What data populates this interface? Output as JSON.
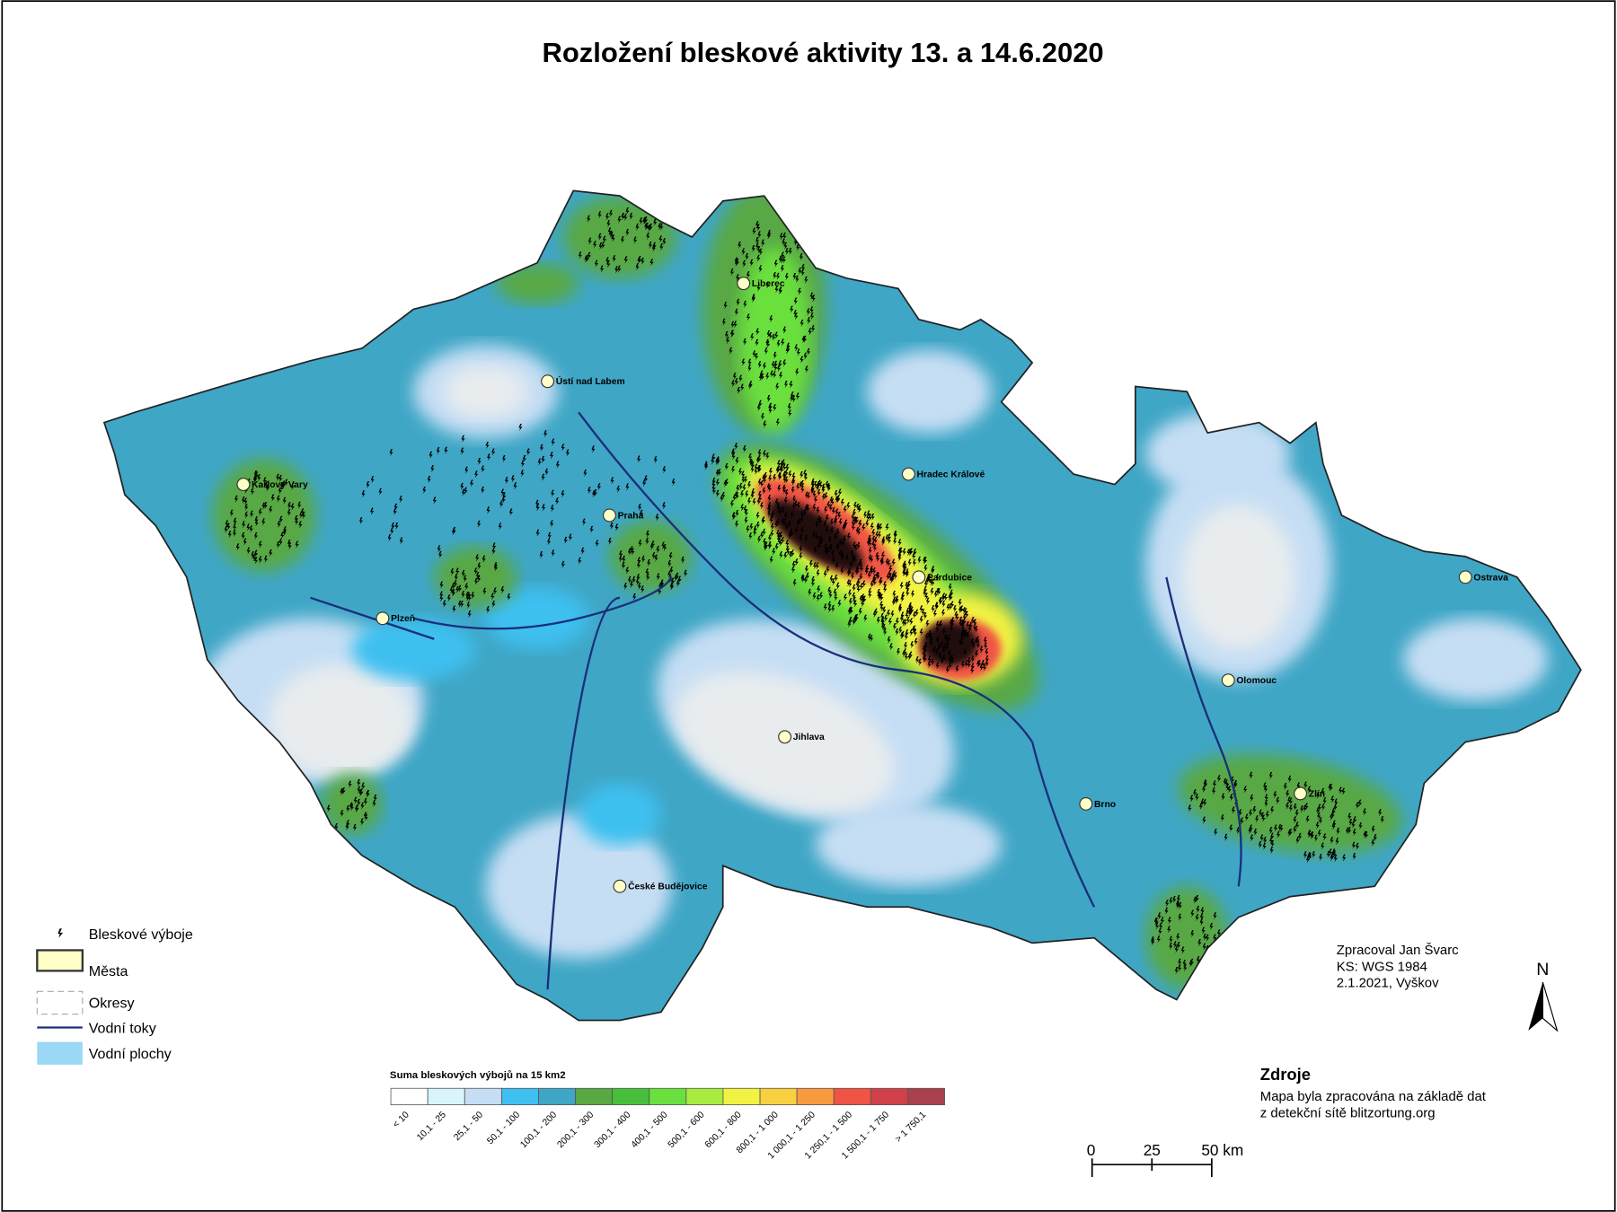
{
  "title": "Rozložení bleskové aktivity 13. a 14.6.2020",
  "legend": {
    "items": [
      {
        "label": "Bleskové výboje"
      },
      {
        "label": "Města",
        "color": "#ffffc8"
      },
      {
        "label": "Okresy"
      },
      {
        "label": "Vodní toky",
        "color": "#1a2e7a"
      },
      {
        "label": "Vodní plochy",
        "color": "#9ad8f5"
      }
    ]
  },
  "color_scale": {
    "title": "Suma bleskových výbojů na 15 km2",
    "classes": [
      {
        "label": "< 10",
        "color": "#ffffff"
      },
      {
        "label": "10,1 - 25",
        "color": "#d8f4fc"
      },
      {
        "label": "25,1 - 50",
        "color": "#c6def4"
      },
      {
        "label": "50,1 - 100",
        "color": "#3ec0f0"
      },
      {
        "label": "100,1 - 200",
        "color": "#3fa6c6"
      },
      {
        "label": "200,1 - 300",
        "color": "#58a844"
      },
      {
        "label": "300,1 - 400",
        "color": "#48bf3c"
      },
      {
        "label": "400,1 - 500",
        "color": "#6ae03e"
      },
      {
        "label": "500,1 - 600",
        "color": "#a8ec40"
      },
      {
        "label": "600,1 - 800",
        "color": "#f2f242"
      },
      {
        "label": "800,1 - 1 000",
        "color": "#f8d040"
      },
      {
        "label": "1 000,1 - 1 250",
        "color": "#f89a40"
      },
      {
        "label": "1 250,1 - 1 500",
        "color": "#f05444"
      },
      {
        "label": "1 500,1 - 1 750",
        "color": "#d04048"
      },
      {
        "label": "> 1 750,1",
        "color": "#a8404e"
      }
    ]
  },
  "cities": [
    "Praha",
    "Brno",
    "Ostrava",
    "Plzeň",
    "Olomouc",
    "Liberec",
    "Hradec Králové",
    "Pardubice",
    "České Budějovice",
    "Jihlava",
    "Zlín",
    "Karlovy Vary",
    "Ústí nad Labem"
  ],
  "credits": [
    "Zpracoval Jan Švarc",
    "KS: WGS 1984",
    "2.1.2021, Vyškov"
  ],
  "sources": {
    "title": "Zdroje",
    "lines": [
      "Mapa byla zpracována na základě dat",
      "z detekční sítě blitzortung.org"
    ]
  },
  "scale_bar": [
    "0",
    "25",
    "50 km"
  ],
  "north": "N"
}
